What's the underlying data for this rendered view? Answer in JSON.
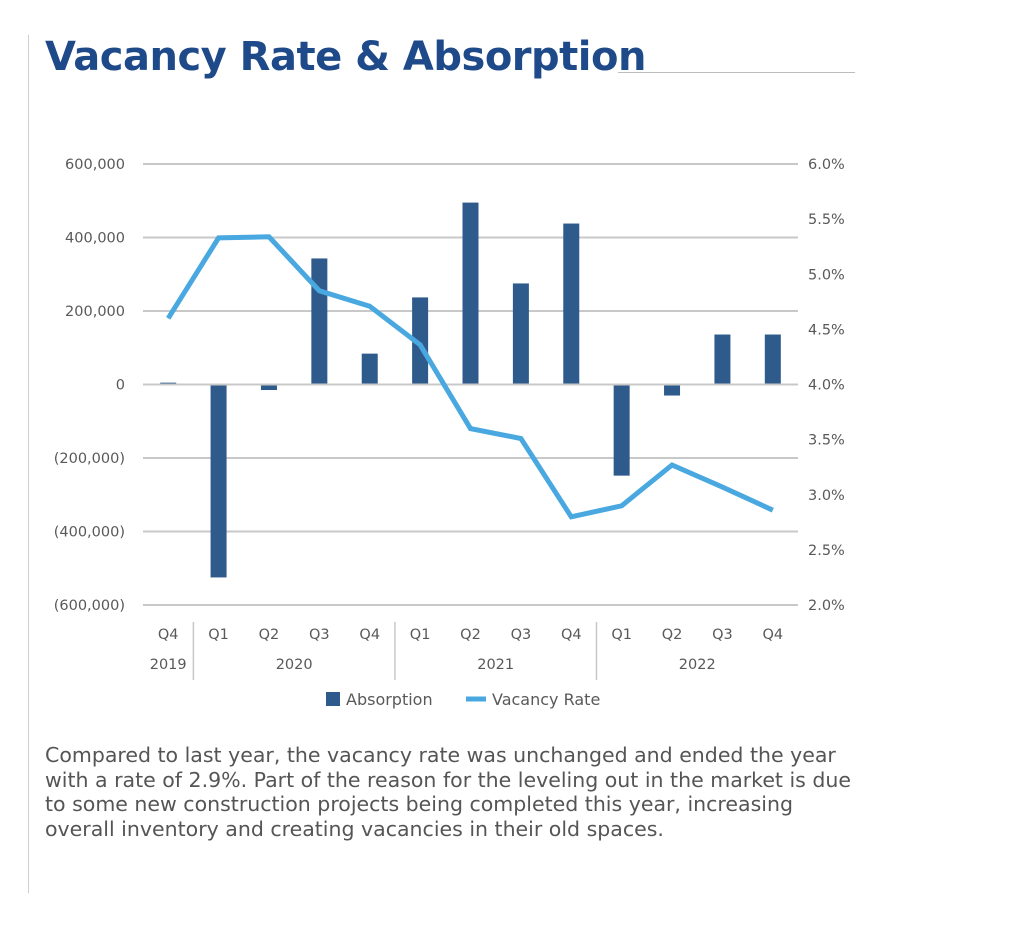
{
  "title": "Vacancy Rate & Absorption",
  "description": "Compared to last year, the vacancy rate was unchanged and ended the year with a rate of 2.9%. Part of the reason for the leveling out in the market is due to some new construction projects being completed this year, increasing overall inventory and creating vacancies in their old spaces.",
  "chart_data": {
    "type": "bar+line",
    "categories": [
      "Q4",
      "Q1",
      "Q2",
      "Q3",
      "Q4",
      "Q1",
      "Q2",
      "Q3",
      "Q4",
      "Q1",
      "Q2",
      "Q3",
      "Q4"
    ],
    "year_groups": [
      {
        "label": "2019",
        "count": 1
      },
      {
        "label": "2020",
        "count": 4
      },
      {
        "label": "2021",
        "count": 4
      },
      {
        "label": "2022",
        "count": 4
      }
    ],
    "series": [
      {
        "name": "Absorption",
        "type": "bar",
        "axis": "left",
        "color": "#2f5a8c",
        "values": [
          5000,
          -525000,
          -15000,
          343000,
          84000,
          237000,
          495000,
          275000,
          438000,
          -248000,
          -30000,
          136000,
          136000
        ]
      },
      {
        "name": "Vacancy Rate",
        "type": "line",
        "axis": "right",
        "color": "#4aa8e0",
        "values": [
          4.6,
          5.33,
          5.34,
          4.85,
          4.71,
          4.36,
          3.6,
          3.51,
          2.8,
          2.9,
          3.27,
          3.07,
          2.86
        ]
      }
    ],
    "left_axis": {
      "range": [
        -600000,
        600000
      ],
      "ticks": [
        "600,000",
        "400,000",
        "200,000",
        "0",
        "(200,000)",
        "(400,000)",
        "(600,000)"
      ]
    },
    "right_axis": {
      "range": [
        2.0,
        6.0
      ],
      "ticks": [
        "6.0%",
        "5.5%",
        "5.0%",
        "4.5%",
        "4.0%",
        "3.5%",
        "3.0%",
        "2.5%",
        "2.0%"
      ]
    },
    "grid": true,
    "legend_position": "bottom"
  }
}
